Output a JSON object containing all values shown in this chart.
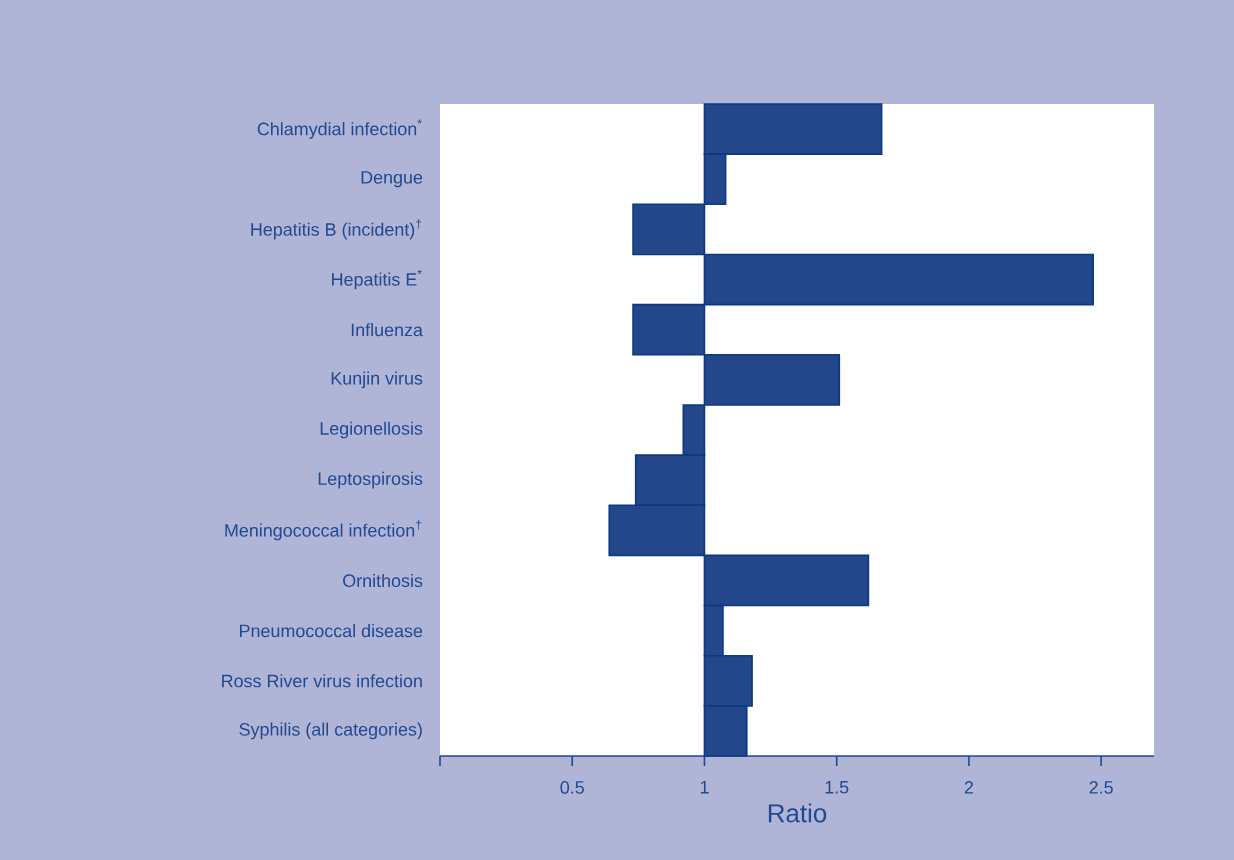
{
  "chart_data": {
    "type": "bar",
    "orientation": "horizontal",
    "categories": [
      "Chlamydial infection$^{*}$",
      "Dengue",
      "Hepatitis B (incident)$^{†}$",
      "Hepatitis E$^{*}$",
      "Influenza",
      "Kunjin virus",
      "Legionellosis",
      "Leptospirosis",
      "Meningococcal infection$^{†}$",
      "Ornithosis",
      "Pneumococcal disease",
      "Ross River virus infection",
      "Syphilis (all categories)"
    ],
    "base": [
      1,
      1,
      1,
      1,
      1,
      1,
      1,
      1,
      1,
      1,
      1,
      1,
      1
    ],
    "values": [
      0.67,
      0.08,
      -0.27,
      1.47,
      -0.27,
      0.51,
      -0.08,
      -0.26,
      -0.36,
      0.62,
      0.07,
      0.18,
      0.16
    ],
    "color": "#24468a",
    "xlabel": "Ratio",
    "xlim": [
      0,
      2.7
    ],
    "xticks": [
      {
        "value": 0,
        "label": null
      },
      0.5,
      1,
      1.5,
      2,
      2.5
    ]
  }
}
